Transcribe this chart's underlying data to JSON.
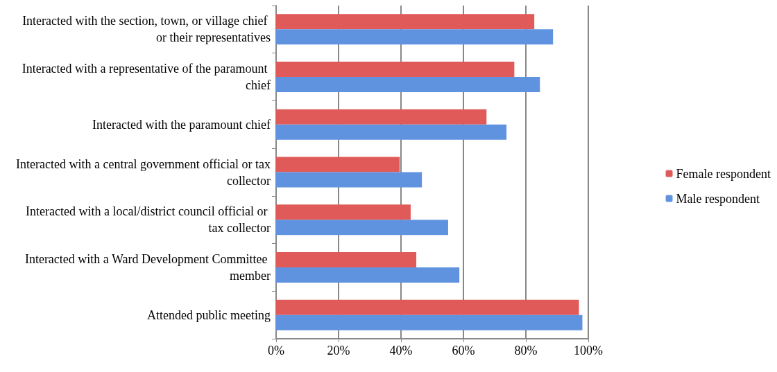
{
  "chart_data": {
    "type": "bar",
    "orientation": "horizontal",
    "categories": [
      "Interacted with the section, town, or village chief or their representatives",
      "Interacted with a representative of the paramount chief",
      "Interacted with the paramount chief",
      "Interacted with a central government official or tax collector",
      "Interacted with a local/district council official or tax collector",
      "Interacted with a Ward Development Committee member",
      "Attended public meeting"
    ],
    "series": [
      {
        "name": "Female respondent",
        "color": "#e05a5a",
        "values": [
          82.7,
          76.3,
          67.4,
          39.6,
          43.1,
          44.9,
          97.0
        ]
      },
      {
        "name": "Male respondent",
        "color": "#5f93e0",
        "values": [
          88.7,
          84.5,
          73.8,
          46.7,
          55.1,
          58.7,
          98.1
        ]
      }
    ],
    "xlim": [
      0,
      100
    ],
    "xticks": [
      {
        "value": 0,
        "label": "0%"
      },
      {
        "value": 20,
        "label": "20%"
      },
      {
        "value": 40,
        "label": "40%"
      },
      {
        "value": 60,
        "label": "60%"
      },
      {
        "value": 80,
        "label": "80%"
      },
      {
        "value": 100,
        "label": "100%"
      }
    ],
    "grid": "x",
    "legend": "right"
  }
}
